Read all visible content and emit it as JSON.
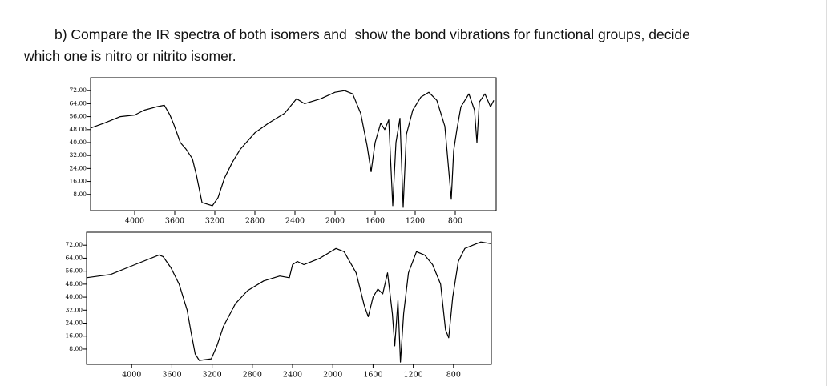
{
  "question": [
    "b) Compare the IR spectra of both isomers and  show the bond vibrations for functional groups, decide",
    "which one is nitro or nitrito isomer."
  ],
  "chart_data": [
    {
      "type": "line",
      "color": "#000000",
      "x": [
        4440,
        4304,
        4144,
        4000,
        3904,
        3784,
        3704,
        3648,
        3608,
        3544,
        3488,
        3424,
        3384,
        3328,
        3224,
        3168,
        3104,
        3024,
        2944,
        2800,
        2664,
        2504,
        2384,
        2304,
        2144,
        2000,
        1904,
        1824,
        1744,
        1680,
        1640,
        1600,
        1544,
        1504,
        1464,
        1424,
        1392,
        1352,
        1320,
        1288,
        1224,
        1144,
        1064,
        984,
        904,
        864,
        840,
        816,
        784,
        744,
        664,
        608,
        584,
        560,
        504,
        448,
        416
      ],
      "values": [
        49,
        52,
        56,
        57,
        60,
        62,
        63,
        57,
        51,
        40,
        36,
        30,
        20,
        3,
        1,
        6,
        18,
        28,
        36,
        46,
        52,
        58,
        67,
        64,
        67,
        71,
        72,
        70,
        58,
        38,
        22,
        40,
        52,
        48,
        54,
        1,
        40,
        55,
        0,
        45,
        60,
        68,
        71,
        66,
        50,
        22,
        5,
        35,
        48,
        62,
        70,
        60,
        40,
        65,
        70,
        62,
        66
      ],
      "xlim": [
        4440,
        392
      ],
      "ylim": [
        -2,
        80
      ],
      "xticks": [
        4000,
        3600,
        3200,
        2800,
        2400,
        2000,
        1600,
        1200,
        800
      ],
      "yticks": [
        {
          "value": 72,
          "label": "72.00"
        },
        {
          "value": 64,
          "label": "64.00"
        },
        {
          "value": 56,
          "label": "56.00"
        },
        {
          "value": 48,
          "label": "48.00"
        },
        {
          "value": 40,
          "label": "40.00"
        },
        {
          "value": 32,
          "label": "32.00"
        },
        {
          "value": 24,
          "label": "24.00"
        },
        {
          "value": 16,
          "label": "16.00"
        },
        {
          "value": 8,
          "label": "8.00"
        }
      ]
    },
    {
      "type": "line",
      "color": "#000000",
      "x": [
        4448,
        4208,
        3968,
        3728,
        3688,
        3608,
        3528,
        3448,
        3408,
        3368,
        3328,
        3208,
        3152,
        3088,
        2968,
        2848,
        2688,
        2528,
        2432,
        2400,
        2352,
        2288,
        2128,
        1968,
        1888,
        1768,
        1688,
        1648,
        1600,
        1552,
        1504,
        1456,
        1408,
        1384,
        1352,
        1328,
        1296,
        1248,
        1168,
        1088,
        1008,
        928,
        880,
        848,
        808,
        752,
        688,
        608,
        528,
        432
      ],
      "values": [
        52,
        54,
        60,
        66,
        65,
        58,
        48,
        32,
        18,
        5,
        1,
        2,
        10,
        22,
        36,
        44,
        50,
        53,
        52,
        60,
        62,
        60,
        64,
        70,
        68,
        55,
        35,
        28,
        40,
        45,
        42,
        55,
        30,
        10,
        38,
        0,
        30,
        55,
        68,
        66,
        60,
        48,
        20,
        15,
        40,
        62,
        70,
        72,
        74,
        73
      ],
      "xlim": [
        4448,
        424
      ],
      "ylim": [
        -1.4,
        80
      ],
      "xticks": [
        4000,
        3600,
        3200,
        2800,
        2400,
        2000,
        1600,
        1200,
        800
      ],
      "yticks": [
        {
          "value": 72,
          "label": "72.00"
        },
        {
          "value": 64,
          "label": "64.00"
        },
        {
          "value": 56,
          "label": "56.00"
        },
        {
          "value": 48,
          "label": "48.00"
        },
        {
          "value": 40,
          "label": "40.00"
        },
        {
          "value": 32,
          "label": "32.00"
        },
        {
          "value": 24,
          "label": "24.00"
        },
        {
          "value": 16,
          "label": "16.00"
        },
        {
          "value": 8,
          "label": "8.00"
        }
      ]
    }
  ]
}
